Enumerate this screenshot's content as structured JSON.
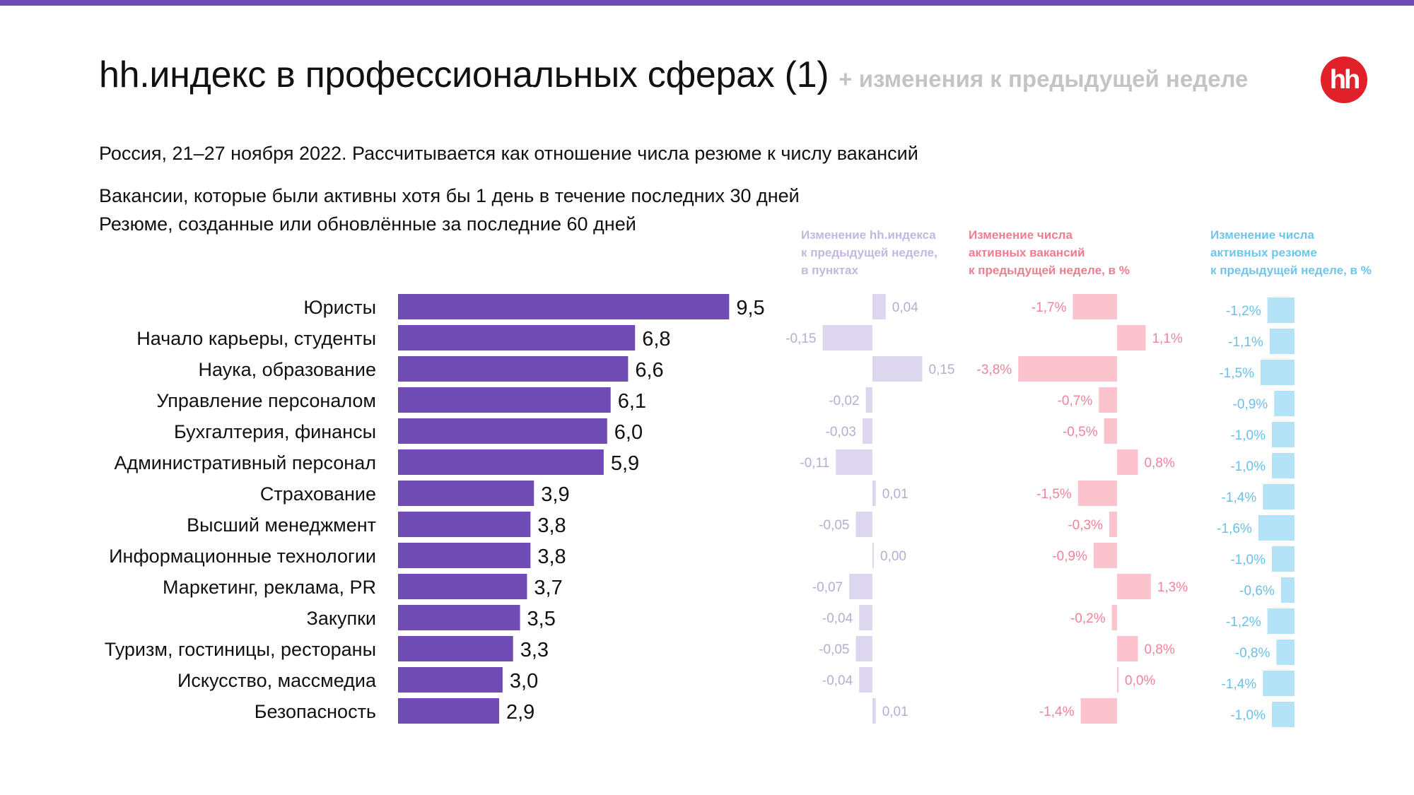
{
  "header": {
    "title": "hh.индекс в профессиональных сферах (1)",
    "title_suffix": "+ изменения к предыдущей неделе",
    "logo_text": "hh",
    "subtitle_line1": "Россия, 21–27 ноября 2022. Рассчитывается как отношение числа резюме к числу вакансий",
    "subtitle_line2": "Вакансии, которые были активны хотя бы 1 день в течение последних 30 дней",
    "subtitle_line3": "Резюме, созданные или обновлённые за последние 60 дней"
  },
  "column_headers": {
    "index_change": "Изменение hh.индекса\nк предыдущей неделе,\nв пунктах",
    "vacancies_change": "Изменение числа\nактивных вакансий\nк предыдущей неделе, в %",
    "resumes_change": "Изменение числа\nактивных резюме\nк предыдущей неделе, в %"
  },
  "colors": {
    "accent": "#6f4bb4",
    "index_change": "#dcd6ef",
    "index_change_label": "#b5aed2",
    "vacancies_change": "#fcc3ce",
    "vacancies_change_label": "#f08398",
    "resumes_change": "#b4e3f8",
    "resumes_change_label": "#6cbfe8",
    "logo": "#e1202a"
  },
  "chart_data": {
    "type": "bar",
    "categories": [
      "Юристы",
      "Начало карьеры, студенты",
      "Наука, образование",
      "Управление персоналом",
      "Бухгалтерия, финансы",
      "Административный персонал",
      "Страхование",
      "Высший менеджмент",
      "Информационные технологии",
      "Маркетинг, реклама, PR",
      "Закупки",
      "Туризм, гостиницы, рестораны",
      "Искусство, массмедиа",
      "Безопасность"
    ],
    "series": [
      {
        "values": [
          9.5,
          6.8,
          6.6,
          6.1,
          6.0,
          5.9,
          3.9,
          3.8,
          3.8,
          3.7,
          3.5,
          3.3,
          3.0,
          2.9
        ],
        "labels": [
          "9,5",
          "6,8",
          "6,6",
          "6,1",
          "6,0",
          "5,9",
          "3,9",
          "3,8",
          "3,8",
          "3,7",
          "3,5",
          "3,3",
          "3,0",
          "2,9"
        ]
      },
      {
        "values": [
          0.04,
          -0.15,
          0.15,
          -0.02,
          -0.03,
          -0.11,
          0.01,
          -0.05,
          0.0,
          -0.07,
          -0.04,
          -0.05,
          -0.04,
          0.01
        ],
        "labels": [
          "0,04",
          "-0,15",
          "0,15",
          "-0,02",
          "-0,03",
          "-0,11",
          "0,01",
          "-0,05",
          "0,00",
          "-0,07",
          "-0,04",
          "-0,05",
          "-0,04",
          "0,01"
        ]
      },
      {
        "values": [
          -1.7,
          1.1,
          -3.8,
          -0.7,
          -0.5,
          0.8,
          -1.5,
          -0.3,
          -0.9,
          1.3,
          -0.2,
          0.8,
          0.0,
          -1.4
        ],
        "labels": [
          "-1,7%",
          "1,1%",
          "-3,8%",
          "-0,7%",
          "-0,5%",
          "0,8%",
          "-1,5%",
          "-0,3%",
          "-0,9%",
          "1,3%",
          "-0,2%",
          "0,8%",
          "0,0%",
          "-1,4%"
        ]
      },
      {
        "values": [
          -1.2,
          -1.1,
          -1.5,
          -0.9,
          -1.0,
          -1.0,
          -1.4,
          -1.6,
          -1.0,
          -0.6,
          -1.2,
          -0.8,
          -1.4,
          -1.0
        ],
        "labels": [
          "-1,2%",
          "-1,1%",
          "-1,5%",
          "-0,9%",
          "-1,0%",
          "-1,0%",
          "-1,4%",
          "-1,6%",
          "-1,0%",
          "-0,6%",
          "-1,2%",
          "-0,8%",
          "-1,4%",
          "-1,0%"
        ]
      }
    ]
  }
}
